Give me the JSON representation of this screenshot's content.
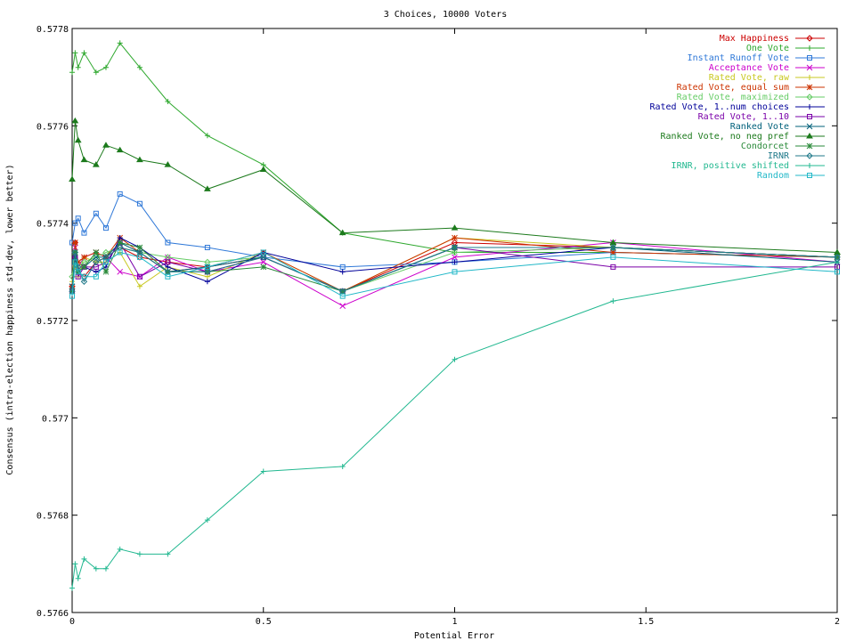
{
  "chart_data": {
    "type": "line",
    "title": "3 Choices, 10000 Voters",
    "xlabel": "Potential Error",
    "ylabel": "Consensus (intra-election happiness std-dev, lower better)",
    "xlim": [
      0,
      2
    ],
    "ylim": [
      0.5766,
      0.5778
    ],
    "xticks": [
      0,
      0.5,
      1,
      1.5,
      2
    ],
    "xtick_labels": [
      "0",
      "0.5",
      "1",
      "1.5",
      "2"
    ],
    "yticks": [
      0.5766,
      0.5768,
      0.577,
      0.5772,
      0.5774,
      0.5776,
      0.5778
    ],
    "ytick_labels": [
      "0.5766",
      "0.5768",
      "0.577",
      "0.5772",
      "0.5774",
      "0.5776",
      "0.5778"
    ],
    "grid": false,
    "legend_position": "top-right",
    "x": [
      0,
      0.0078,
      0.0156,
      0.0313,
      0.0625,
      0.0884,
      0.125,
      0.1768,
      0.25,
      0.3536,
      0.5,
      0.7071,
      1,
      1.4142,
      2
    ],
    "series": [
      {
        "name": "Max Happiness",
        "color": "#cc0000",
        "marker": "diamond",
        "values": [
          0.57727,
          0.57736,
          0.5773,
          0.57729,
          0.57732,
          0.57733,
          0.57735,
          0.57733,
          0.57732,
          0.57731,
          0.57733,
          0.57726,
          0.57736,
          0.57735,
          0.57733
        ]
      },
      {
        "name": "One Vote",
        "color": "#2ea82e",
        "marker": "plus",
        "values": [
          0.57771,
          0.57775,
          0.57772,
          0.57775,
          0.57771,
          0.57772,
          0.57777,
          0.57772,
          0.57765,
          0.57758,
          0.57752,
          0.57738,
          0.57734,
          0.57734,
          0.57733
        ]
      },
      {
        "name": "Instant Runoff Vote",
        "color": "#2f78d8",
        "marker": "square",
        "values": [
          0.57736,
          0.5774,
          0.57741,
          0.57738,
          0.57742,
          0.57739,
          0.57746,
          0.57744,
          0.57736,
          0.57735,
          0.57733,
          0.57731,
          0.57732,
          0.57734,
          0.57733
        ]
      },
      {
        "name": "Acceptance Vote",
        "color": "#cc00cc",
        "marker": "x",
        "values": [
          0.57726,
          0.57735,
          0.57731,
          0.57733,
          0.57734,
          0.57733,
          0.5773,
          0.57729,
          0.57733,
          0.5773,
          0.57732,
          0.57723,
          0.57733,
          0.57736,
          0.57732
        ]
      },
      {
        "name": "Rated Vote, raw",
        "color": "#c8c820",
        "marker": "plus",
        "values": [
          0.57728,
          0.57731,
          0.57729,
          0.57733,
          0.57732,
          0.57732,
          0.57734,
          0.57727,
          0.57731,
          0.57729,
          0.57734,
          0.57726,
          0.57737,
          0.57735,
          0.57733
        ]
      },
      {
        "name": "Rated Vote, equal sum",
        "color": "#cc3300",
        "marker": "star",
        "values": [
          0.57727,
          0.57736,
          0.57732,
          0.57733,
          0.57734,
          0.57733,
          0.57737,
          0.57734,
          0.5773,
          0.57731,
          0.57734,
          0.57726,
          0.57737,
          0.57734,
          0.57733
        ]
      },
      {
        "name": "Rated Vote, maximized",
        "color": "#66cc66",
        "marker": "diamond",
        "values": [
          0.57729,
          0.57734,
          0.57731,
          0.57732,
          0.57733,
          0.57734,
          0.57735,
          0.57734,
          0.57733,
          0.57732,
          0.57733,
          0.57726,
          0.57734,
          0.57735,
          0.57733
        ]
      },
      {
        "name": "Rated Vote, 1..num choices",
        "color": "#000099",
        "marker": "plus",
        "values": [
          0.57726,
          0.57733,
          0.5773,
          0.57731,
          0.5773,
          0.57731,
          0.57737,
          0.57735,
          0.57731,
          0.57728,
          0.57734,
          0.5773,
          0.57732,
          0.57735,
          0.57733
        ]
      },
      {
        "name": "Rated Vote, 1..10",
        "color": "#7a00a8",
        "marker": "square",
        "values": [
          0.57726,
          0.57733,
          0.57729,
          0.57731,
          0.57731,
          0.57732,
          0.57736,
          0.57729,
          0.57732,
          0.5773,
          0.57733,
          0.57726,
          0.57735,
          0.57731,
          0.57731
        ]
      },
      {
        "name": "Ranked Vote",
        "color": "#00607a",
        "marker": "x",
        "values": [
          0.57727,
          0.57733,
          0.5773,
          0.57731,
          0.57733,
          0.57733,
          0.57736,
          0.57734,
          0.5773,
          0.57731,
          0.57733,
          0.57726,
          0.57735,
          0.57735,
          0.57732
        ]
      },
      {
        "name": "Ranked Vote, no neg pref",
        "color": "#1c7a1c",
        "marker": "triangle",
        "values": [
          0.57749,
          0.57761,
          0.57757,
          0.57753,
          0.57752,
          0.57756,
          0.57755,
          0.57753,
          0.57752,
          0.57747,
          0.57751,
          0.57738,
          0.57739,
          0.57736,
          0.57734
        ]
      },
      {
        "name": "Condorcet",
        "color": "#2a8a3a",
        "marker": "star",
        "values": [
          0.57726,
          0.57734,
          0.5773,
          0.57731,
          0.57734,
          0.5773,
          0.57736,
          0.57735,
          0.5773,
          0.5773,
          0.57731,
          0.57726,
          0.57735,
          0.57735,
          0.57733
        ]
      },
      {
        "name": "IRNR",
        "color": "#207a8a",
        "marker": "diamond",
        "values": [
          0.57726,
          0.57734,
          0.57731,
          0.57728,
          0.57732,
          0.57733,
          0.57735,
          0.57734,
          0.5773,
          0.5773,
          0.57733,
          0.57726,
          0.57735,
          0.57735,
          0.57733
        ]
      },
      {
        "name": "IRNR, positive shifted",
        "color": "#22b890",
        "marker": "plus",
        "values": [
          0.57665,
          0.5767,
          0.57667,
          0.57671,
          0.57669,
          0.57669,
          0.57673,
          0.57672,
          0.57672,
          0.57679,
          0.57689,
          0.5769,
          0.57712,
          0.57724,
          0.57732
        ]
      },
      {
        "name": "Random",
        "color": "#22b8c8",
        "marker": "square",
        "values": [
          0.57725,
          0.57732,
          0.5773,
          0.57729,
          0.57729,
          0.57732,
          0.57734,
          0.57733,
          0.57729,
          0.57731,
          0.57734,
          0.57725,
          0.5773,
          0.57733,
          0.5773
        ]
      }
    ]
  }
}
